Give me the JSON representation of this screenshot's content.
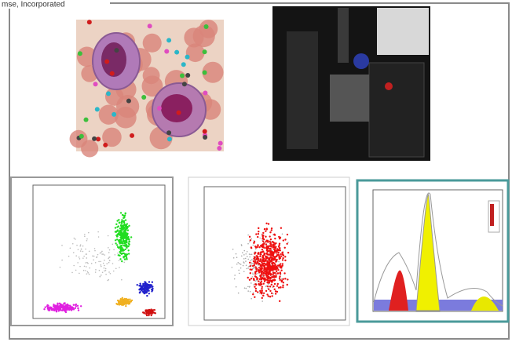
{
  "header": {
    "caption": "mse, Incorporated"
  }
}
